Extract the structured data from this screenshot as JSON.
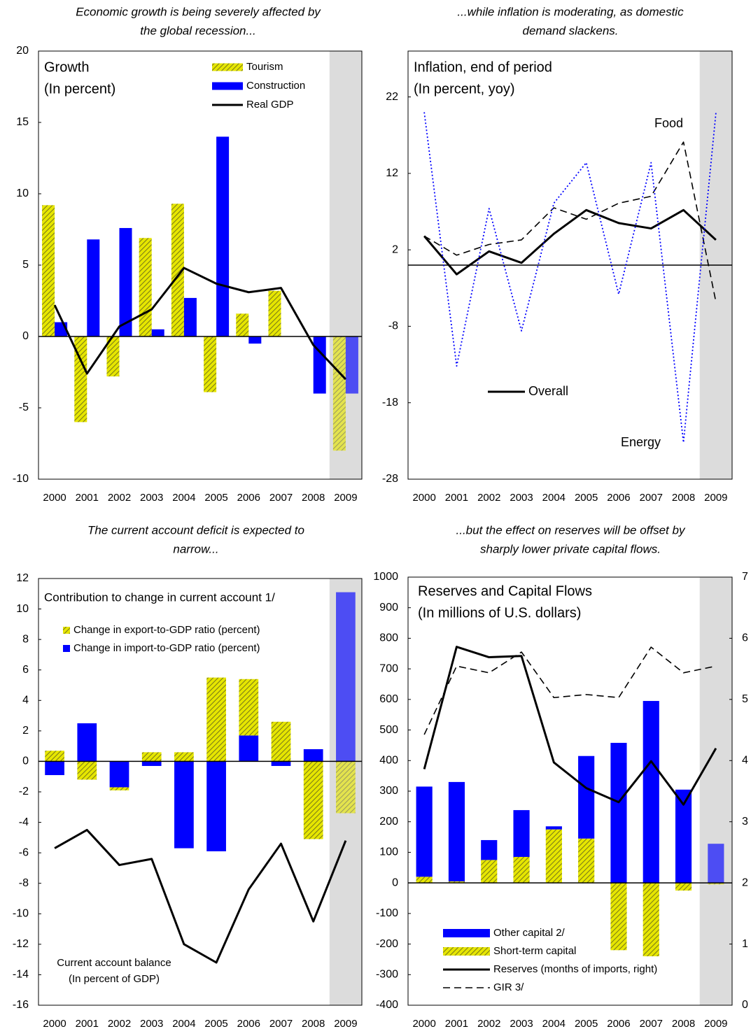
{
  "chart_data": [
    {
      "type": "combo",
      "headline": [
        "Economic growth is being severely affected by",
        "the global recession..."
      ],
      "title": [
        "Growth",
        "(In percent)"
      ],
      "categories": [
        "2000",
        "2001",
        "2002",
        "2003",
        "2004",
        "2005",
        "2006",
        "2007",
        "2008",
        "2009"
      ],
      "ylim": [
        -10,
        20
      ],
      "yticks": [
        -10,
        -5,
        0,
        5,
        10,
        15,
        20
      ],
      "projection_shading": true,
      "stacked": false,
      "series": [
        {
          "name": "Tourism",
          "kind": "bar",
          "color": "#e6e600",
          "pattern": "hatch",
          "values": [
            9.2,
            -6.0,
            -2.8,
            6.9,
            9.3,
            -3.9,
            1.6,
            3.2,
            0,
            -8.0
          ]
        },
        {
          "name": "Construction",
          "kind": "bar",
          "color": "#0000ff",
          "values": [
            1.0,
            6.8,
            7.6,
            0.5,
            2.7,
            14.0,
            -0.5,
            0,
            -4.0,
            -4.0
          ]
        },
        {
          "name": "Real GDP",
          "kind": "line",
          "color": "#000000",
          "dash": "solid",
          "values": [
            2.2,
            -2.6,
            0.7,
            1.9,
            4.8,
            3.7,
            3.1,
            3.4,
            -0.6,
            -3.0
          ]
        }
      ]
    },
    {
      "type": "line",
      "headline": [
        "...while inflation is moderating, as domestic",
        "demand slackens."
      ],
      "title": [
        "Inflation, end of period",
        "(In percent, yoy)"
      ],
      "categories": [
        "2000",
        "2001",
        "2002",
        "2003",
        "2004",
        "2005",
        "2006",
        "2007",
        "2008",
        "2009"
      ],
      "ylim": [
        -28,
        28
      ],
      "yticks": [
        -28,
        -18,
        -8,
        2,
        12,
        22
      ],
      "projection_shading": true,
      "series": [
        {
          "name": "Overall",
          "kind": "line",
          "color": "#000000",
          "dash": "solid",
          "values": [
            3.8,
            -1.2,
            1.8,
            0.3,
            4.1,
            7.2,
            5.5,
            4.8,
            7.2,
            3.3
          ]
        },
        {
          "name": "Food",
          "kind": "line",
          "color": "#000000",
          "dash": "dashed",
          "values": [
            3.8,
            1.3,
            2.7,
            3.3,
            7.5,
            6.0,
            8.1,
            9.0,
            16.1,
            -4.8
          ]
        },
        {
          "name": "Energy",
          "kind": "line",
          "color": "#0000ff",
          "dash": "dotted",
          "values": [
            20.0,
            -13.2,
            7.4,
            -8.6,
            8.1,
            13.4,
            -3.8,
            13.4,
            -23.2,
            19.9
          ]
        }
      ]
    },
    {
      "type": "combo",
      "headline": [
        "The current account deficit is expected to",
        "narrow..."
      ],
      "title": [
        "Contribution to change in current account 1/"
      ],
      "categories": [
        "2000",
        "2001",
        "2002",
        "2003",
        "2004",
        "2005",
        "2006",
        "2007",
        "2008",
        "2009"
      ],
      "ylim": [
        -16,
        12
      ],
      "yticks": [
        -16,
        -14,
        -12,
        -10,
        -8,
        -6,
        -4,
        -2,
        0,
        2,
        4,
        6,
        8,
        10,
        12
      ],
      "projection_shading": true,
      "stacked": true,
      "annotations": [
        "(In percent of GDP)"
      ],
      "series": [
        {
          "name": "Change in import-to-GDP ratio (percent)",
          "kind": "bar",
          "color": "#0000ff",
          "values": [
            -0.9,
            2.5,
            -1.7,
            -0.3,
            -5.7,
            -5.9,
            1.7,
            -0.3,
            0.8,
            11.1
          ]
        },
        {
          "name": "Change in export-to-GDP ratio (percent)",
          "kind": "bar",
          "color": "#e6e600",
          "pattern": "hatch",
          "values": [
            0.7,
            -1.2,
            -0.2,
            0.6,
            0.6,
            5.5,
            3.7,
            2.6,
            -5.1,
            -3.4
          ]
        },
        {
          "name": "Current account balance",
          "kind": "line",
          "color": "#000000",
          "dash": "solid",
          "values": [
            -5.7,
            -4.5,
            -6.8,
            -6.4,
            -12.0,
            -13.2,
            -8.4,
            -5.4,
            -10.5,
            -5.2
          ]
        }
      ]
    },
    {
      "type": "combo",
      "headline": [
        "...but the effect on reserves will be offset by",
        "sharply lower private capital flows."
      ],
      "title": [
        "Reserves and Capital Flows",
        "(In millions of U.S. dollars)"
      ],
      "categories": [
        "2000",
        "2001",
        "2002",
        "2003",
        "2004",
        "2005",
        "2006",
        "2007",
        "2008",
        "2009"
      ],
      "ylim": [
        -400,
        1000
      ],
      "yticks": [
        -400,
        -300,
        -200,
        -100,
        0,
        100,
        200,
        300,
        400,
        500,
        600,
        700,
        800,
        900,
        1000
      ],
      "y2lim": [
        0,
        7
      ],
      "y2ticks": [
        0,
        1,
        2,
        3,
        4,
        5,
        6,
        7
      ],
      "projection_shading": true,
      "stacked": true,
      "series": [
        {
          "name": "Short-term capital",
          "kind": "bar",
          "color": "#e6e600",
          "pattern": "hatch",
          "values": [
            20,
            5,
            75,
            85,
            175,
            145,
            -220,
            -240,
            -25,
            -5
          ]
        },
        {
          "name": "Other capital 2/",
          "kind": "bar",
          "color": "#0000ff",
          "values": [
            295,
            325,
            65,
            153,
            10,
            270,
            458,
            595,
            305,
            128
          ]
        },
        {
          "name": "Reserves (months of imports, right)",
          "kind": "line",
          "color": "#000000",
          "dash": "solid",
          "axis": "y2",
          "values": [
            3.86,
            5.86,
            5.69,
            5.71,
            3.97,
            3.55,
            3.32,
            3.99,
            3.28,
            4.2
          ]
        },
        {
          "name": "GIR 3/",
          "kind": "line",
          "color": "#000000",
          "dash": "dashed",
          "values": [
            485,
            709,
            687,
            755,
            606,
            616,
            606,
            771,
            687,
            709
          ]
        }
      ]
    }
  ]
}
